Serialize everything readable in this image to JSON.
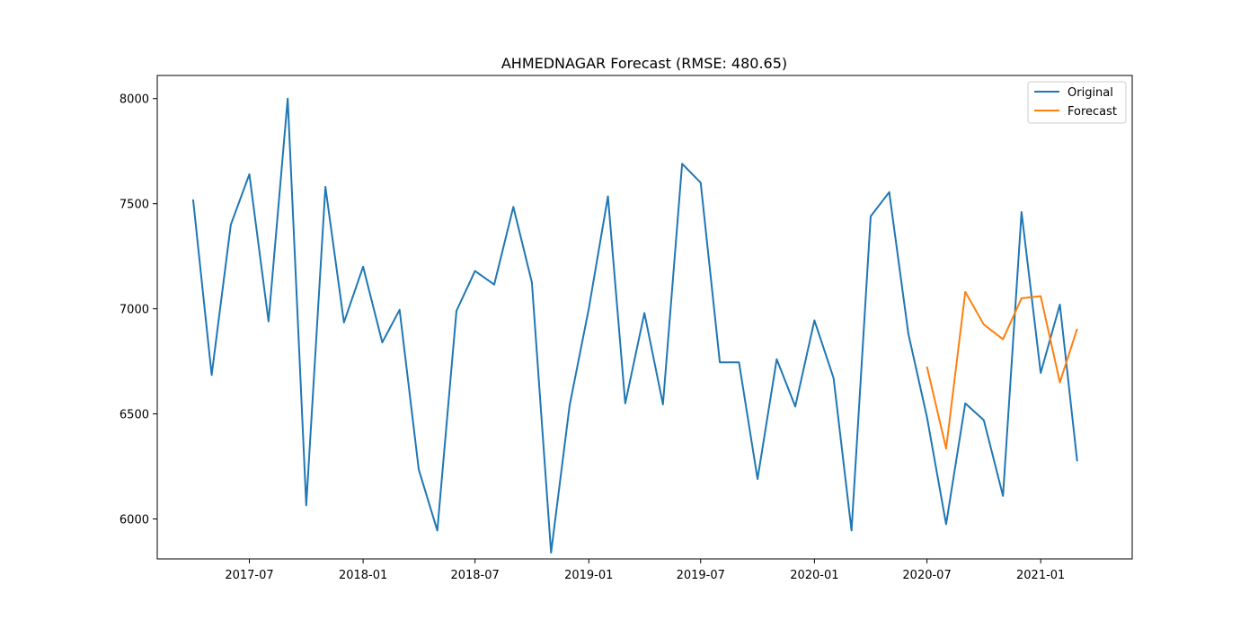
{
  "chart_data": {
    "type": "line",
    "title": "AHMEDNAGAR Forecast (RMSE: 480.65)",
    "xlabel": "",
    "ylabel": "",
    "x_tick_labels": [
      "2017-07",
      "2018-01",
      "2018-07",
      "2019-01",
      "2019-07",
      "2020-01",
      "2020-07",
      "2021-01"
    ],
    "y_ticks": [
      6000,
      6500,
      7000,
      7500,
      8000
    ],
    "xlim": [
      "2017-02-02",
      "2021-05-29"
    ],
    "ylim": [
      5810,
      8110
    ],
    "grid": false,
    "legend_position": "top-right",
    "series": [
      {
        "name": "Original",
        "color": "#1f77b4",
        "x": [
          "2017-04-01",
          "2017-05-01",
          "2017-06-01",
          "2017-07-01",
          "2017-08-01",
          "2017-09-01",
          "2017-10-01",
          "2017-11-01",
          "2017-12-01",
          "2018-01-01",
          "2018-02-01",
          "2018-03-01",
          "2018-04-01",
          "2018-05-01",
          "2018-06-01",
          "2018-07-01",
          "2018-08-01",
          "2018-09-01",
          "2018-10-01",
          "2018-11-01",
          "2018-12-01",
          "2019-01-01",
          "2019-02-01",
          "2019-03-01",
          "2019-04-01",
          "2019-05-01",
          "2019-06-01",
          "2019-07-01",
          "2019-08-01",
          "2019-09-01",
          "2019-10-01",
          "2019-11-01",
          "2019-12-01",
          "2020-01-01",
          "2020-02-01",
          "2020-03-01",
          "2020-04-01",
          "2020-05-01",
          "2020-06-01",
          "2020-07-01",
          "2020-08-01",
          "2020-09-01",
          "2020-10-01",
          "2020-11-01",
          "2020-12-01",
          "2021-01-01",
          "2021-02-01",
          "2021-03-01"
        ],
        "values": [
          7520,
          6685,
          7400,
          7640,
          6940,
          8000,
          6065,
          7580,
          6935,
          7200,
          6840,
          6995,
          6235,
          5945,
          6990,
          7180,
          7115,
          7485,
          7125,
          5840,
          6540,
          7000,
          7535,
          6550,
          6980,
          6545,
          7690,
          7600,
          6745,
          6745,
          6190,
          6760,
          6535,
          6945,
          6670,
          5945,
          7440,
          7555,
          6880,
          6485,
          5975,
          6550,
          6470,
          6110,
          7460,
          6695,
          7020,
          6275
        ]
      },
      {
        "name": "Forecast",
        "color": "#ff7f0e",
        "x": [
          "2020-07-01",
          "2020-08-01",
          "2020-09-01",
          "2020-10-01",
          "2020-11-01",
          "2020-12-01",
          "2021-01-01",
          "2021-02-01",
          "2021-03-01"
        ],
        "values": [
          6725,
          6335,
          7080,
          6925,
          6855,
          7050,
          7060,
          6650,
          6905
        ]
      }
    ]
  }
}
